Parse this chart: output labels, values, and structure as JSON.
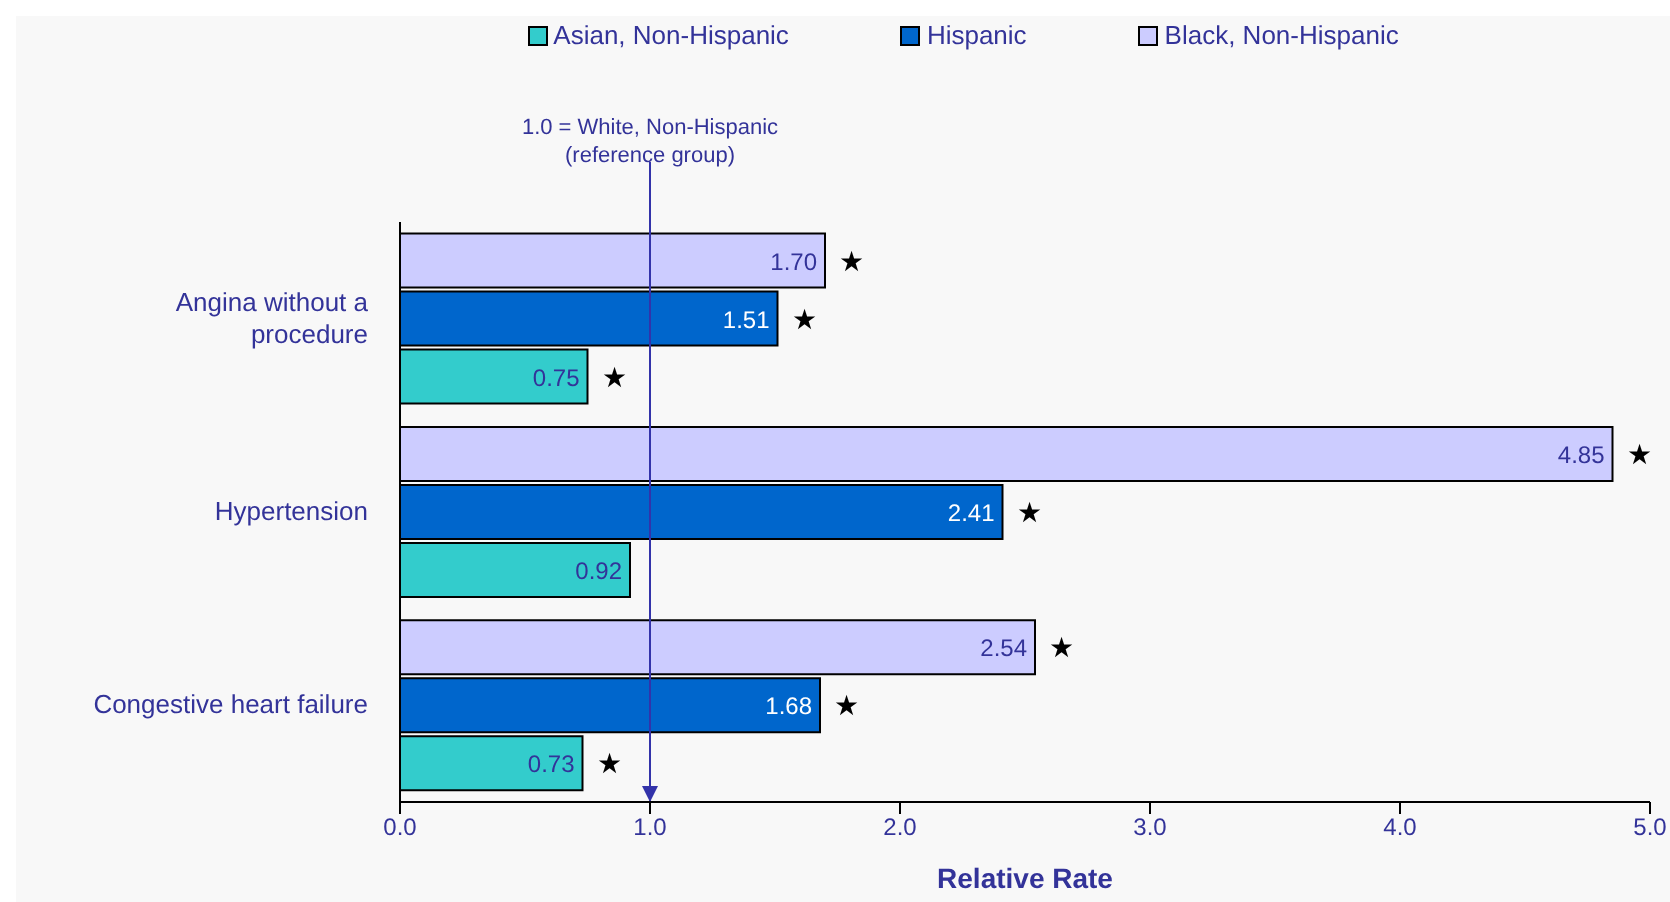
{
  "chart_data": {
    "type": "bar",
    "orientation": "horizontal",
    "xlabel": "Relative Rate",
    "categories": [
      "Angina without a procedure",
      "Hypertension",
      "Congestive heart failure"
    ],
    "series": [
      {
        "name": "Asian, Non-Hispanic",
        "color": "#33cccc",
        "values": [
          0.75,
          0.92,
          0.73
        ],
        "value_labels": [
          "0.75",
          "0.92",
          "0.73"
        ]
      },
      {
        "name": "Hispanic",
        "color": "#0066cc",
        "values": [
          1.51,
          2.41,
          1.68
        ],
        "value_labels": [
          "1.51",
          "2.41",
          "1.68"
        ]
      },
      {
        "name": "Black, Non-Hispanic",
        "color": "#ccccff",
        "values": [
          1.7,
          4.85,
          2.54
        ],
        "value_labels": [
          "1.70",
          "4.85",
          "2.54"
        ]
      }
    ],
    "xlim": [
      0,
      5
    ],
    "xticks": [
      {
        "value": 0,
        "label": "0.0"
      },
      {
        "value": 1,
        "label": "1.0"
      },
      {
        "value": 2,
        "label": "2.0"
      },
      {
        "value": 3,
        "label": "3.0"
      },
      {
        "value": 4,
        "label": "4.0"
      },
      {
        "value": 5,
        "label": "5.0"
      }
    ],
    "ref_lines": [
      {
        "axis": "x",
        "value": 1,
        "label": "1.0 = White, Non-Hispanic\n(reference group)",
        "color": "#3333aa"
      }
    ],
    "annotations": [
      {
        "text": "★",
        "x": 1.7
      },
      {
        "text": "★",
        "x": 1.51
      },
      {
        "text": "★",
        "x": 0.75
      },
      {
        "text": "★",
        "x": 4.85
      },
      {
        "text": "★",
        "x": 2.41
      },
      {
        "text": "★",
        "x": 2.54
      },
      {
        "text": "★",
        "x": 1.68
      },
      {
        "text": "★",
        "x": 0.73
      }
    ],
    "legend": "top",
    "grid": false
  }
}
